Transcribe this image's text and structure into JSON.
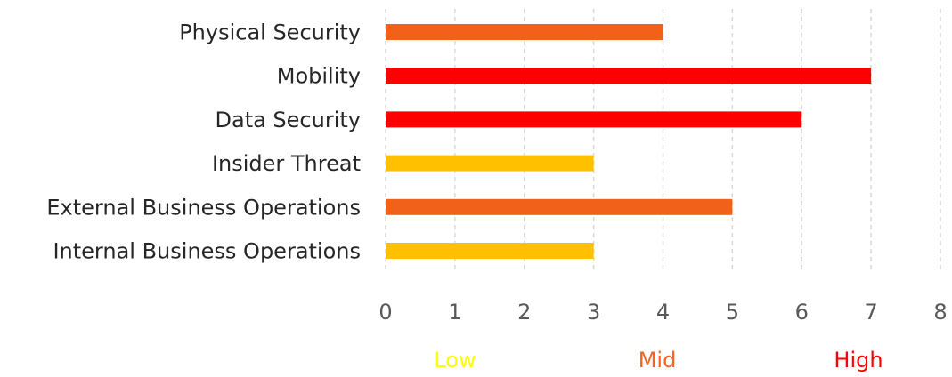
{
  "chart_data": {
    "type": "bar",
    "orientation": "horizontal",
    "title": "",
    "xlabel": "",
    "ylabel": "",
    "categories": [
      "Physical Security",
      "Mobility",
      "Data Security",
      "Insider Threat",
      "External Business Operations",
      "Internal Business Operations"
    ],
    "values": [
      4,
      7,
      6,
      3,
      5,
      3
    ],
    "levels": [
      "Mid",
      "High",
      "High",
      "Low",
      "Mid",
      "Low"
    ],
    "xlim": [
      0,
      8
    ],
    "ticks": [
      0,
      1,
      2,
      3,
      4,
      5,
      6,
      7,
      8
    ],
    "grid": true,
    "legend": [
      {
        "label": "Low",
        "color": "#FFFF00"
      },
      {
        "label": "Mid",
        "color": "#F26522"
      },
      {
        "label": "High",
        "color": "#FF0000"
      }
    ],
    "level_colors": {
      "Low": "#FFC000",
      "Mid": "#F26119",
      "High": "#FF0000"
    }
  }
}
